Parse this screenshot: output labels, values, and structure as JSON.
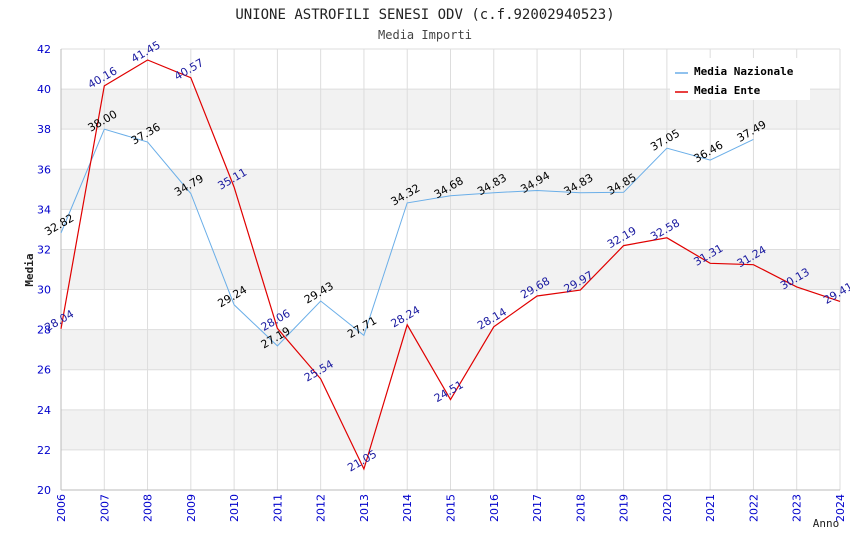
{
  "chart_data": {
    "type": "line",
    "title": "UNIONE ASTROFILI SENESI ODV (c.f.92002940523)",
    "subtitle": "Media Importi",
    "xlabel": "Anno",
    "ylabel": "Media",
    "ylim": [
      20,
      42
    ],
    "yticks": [
      "20",
      "22",
      "24",
      "26",
      "28",
      "30",
      "32",
      "34",
      "36",
      "38",
      "40",
      "42"
    ],
    "categories": [
      "2006",
      "2007",
      "2008",
      "2009",
      "2010",
      "2011",
      "2012",
      "2013",
      "2014",
      "2015",
      "2016",
      "2017",
      "2018",
      "2019",
      "2020",
      "2021",
      "2022",
      "2023",
      "2024"
    ],
    "grid": true,
    "legend_position": "top-right",
    "series": [
      {
        "name": "Media Nazionale",
        "color": "#6aaee8",
        "label_color": "#000000",
        "values": [
          32.82,
          38.0,
          37.36,
          34.79,
          29.24,
          27.19,
          29.43,
          27.71,
          34.32,
          34.68,
          34.83,
          34.94,
          34.83,
          34.85,
          37.05,
          36.46,
          37.49,
          null,
          null
        ],
        "labels": [
          "32.82",
          "38.00",
          "37.36",
          "34.79",
          "29.24",
          "27.19",
          "29.43",
          "27.71",
          "34.32",
          "34.68",
          "34.83",
          "34.94",
          "34.83",
          "34.85",
          "37.05",
          "36.46",
          "37.49",
          null,
          null
        ]
      },
      {
        "name": "Media Ente",
        "color": "#e00000",
        "label_color": "#1a1aa0",
        "values": [
          28.04,
          40.16,
          41.45,
          40.57,
          35.11,
          28.06,
          25.54,
          21.05,
          28.24,
          24.51,
          28.14,
          29.68,
          29.97,
          32.19,
          32.58,
          31.31,
          31.24,
          30.13,
          29.41
        ],
        "labels": [
          "28.04",
          "40.16",
          "41.45",
          "40.57",
          "35.11",
          "28.06",
          "25.54",
          "21.05",
          "28.24",
          "24.51",
          "28.14",
          "29.68",
          "29.97",
          "32.19",
          "32.58",
          "31.31",
          "31.24",
          "30.13",
          "29.41"
        ]
      }
    ],
    "colors": {
      "band": "#f2f2f2",
      "grid": "#dddddd",
      "axis_text": "#0000cc",
      "title": "#222222"
    }
  }
}
